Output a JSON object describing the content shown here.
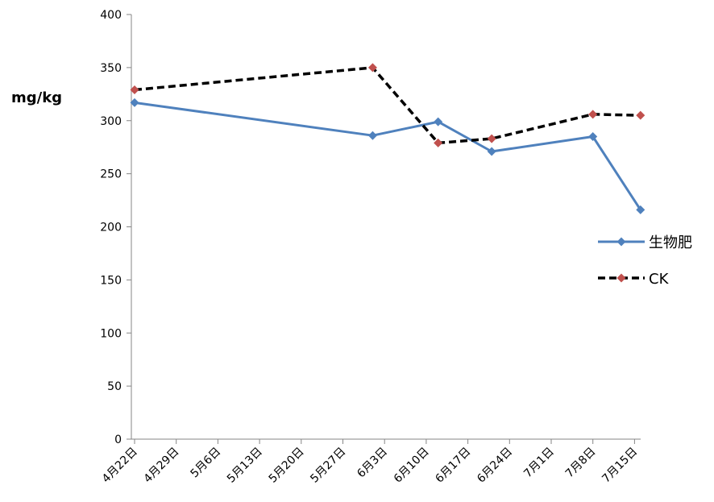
{
  "chart_data": {
    "type": "line",
    "ylabel": "mg/kg",
    "xlabel": "",
    "title": "",
    "ylim": [
      0,
      400
    ],
    "yticks": [
      0,
      50,
      100,
      150,
      200,
      250,
      300,
      350,
      400
    ],
    "x_ticks": [
      "4月22日",
      "4月29日",
      "5月6日",
      "5月13日",
      "5月20日",
      "5月27日",
      "6月3日",
      "6月10日",
      "6月17日",
      "6月24日",
      "7月1日",
      "7月8日",
      "7月15日"
    ],
    "legend_position": "right",
    "grid": false,
    "series": [
      {
        "name": "生物肥",
        "style": "solid",
        "line_color": "#4f81bd",
        "marker_color": "#4f81bd",
        "points": [
          {
            "x": "4月22日",
            "y": 317
          },
          {
            "x": "6月1日",
            "y": 286
          },
          {
            "x": "6月12日",
            "y": 299
          },
          {
            "x": "6月21日",
            "y": 271
          },
          {
            "x": "7月8日",
            "y": 285
          },
          {
            "x": "7月16日",
            "y": 216
          }
        ]
      },
      {
        "name": "CK",
        "style": "dashed",
        "line_color": "#000000",
        "marker_color": "#c0504d",
        "points": [
          {
            "x": "4月22日",
            "y": 329
          },
          {
            "x": "6月1日",
            "y": 350
          },
          {
            "x": "6月12日",
            "y": 279
          },
          {
            "x": "6月21日",
            "y": 283
          },
          {
            "x": "7月8日",
            "y": 306
          },
          {
            "x": "7月16日",
            "y": 305
          }
        ]
      }
    ]
  }
}
